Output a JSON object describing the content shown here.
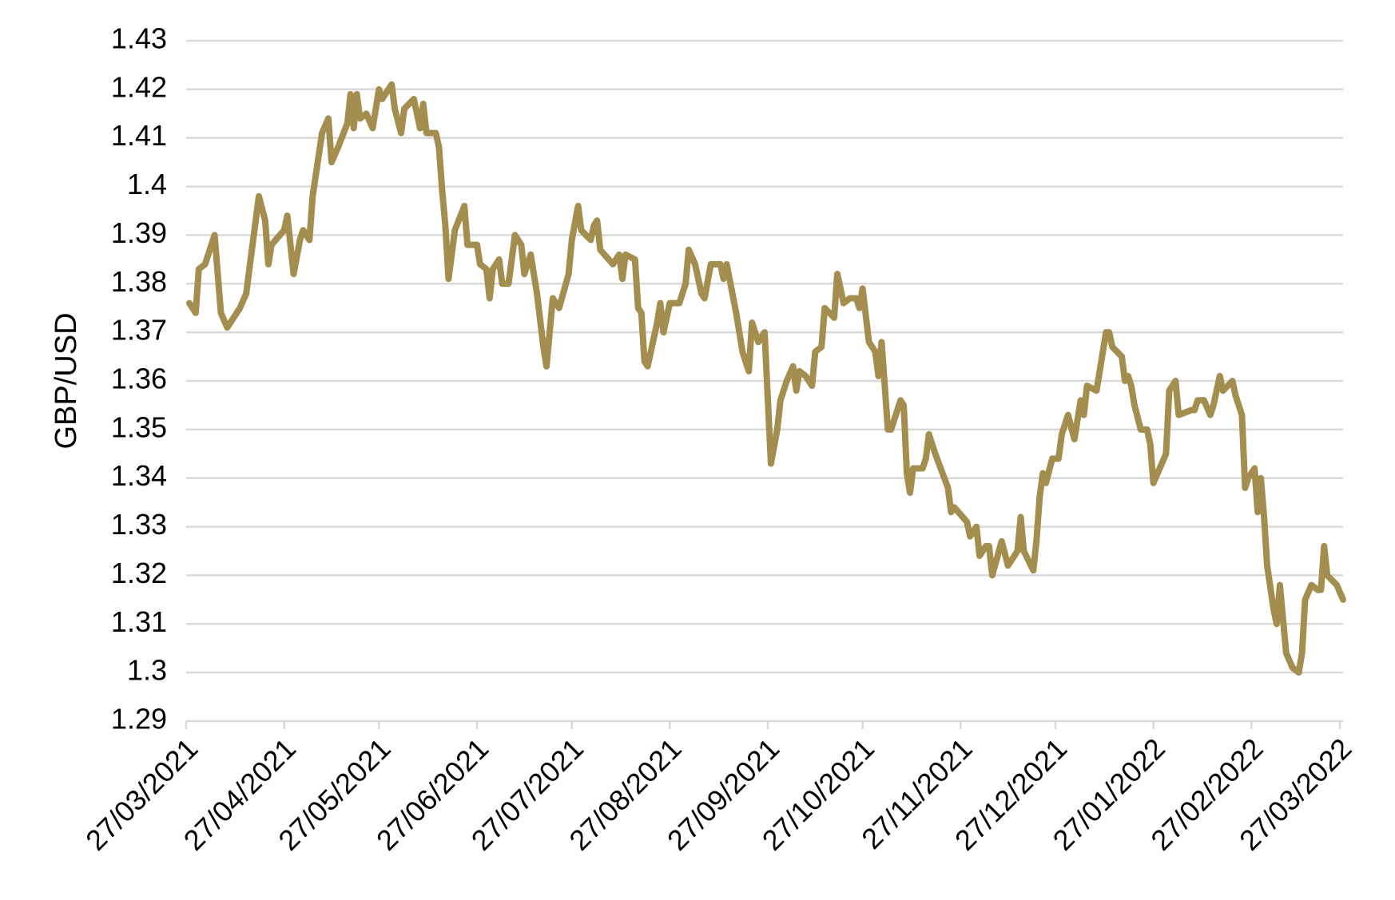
{
  "chart_data": {
    "type": "line",
    "ylabel": "GBP/USD",
    "color": "#a38e4f",
    "x": [
      "28/03/2021",
      "30/03/2021",
      "31/03/2021",
      "02/04/2021",
      "05/04/2021",
      "07/04/2021",
      "09/04/2021",
      "13/04/2021",
      "15/04/2021",
      "16/04/2021",
      "19/04/2021",
      "21/04/2021",
      "22/04/2021",
      "23/04/2021",
      "27/04/2021",
      "28/04/2021",
      "30/04/2021",
      "02/05/2021",
      "03/05/2021",
      "05/05/2021",
      "06/05/2021",
      "09/05/2021",
      "11/05/2021",
      "12/05/2021",
      "14/05/2021",
      "17/05/2021",
      "18/05/2021",
      "19/05/2021",
      "20/05/2021",
      "21/05/2021",
      "23/05/2021",
      "25/05/2021",
      "27/05/2021",
      "28/05/2021",
      "31/05/2021",
      "01/06/2021",
      "03/06/2021",
      "04/06/2021",
      "07/06/2021",
      "09/06/2021",
      "10/06/2021",
      "11/06/2021",
      "14/06/2021",
      "15/06/2021",
      "16/06/2021",
      "17/06/2021",
      "18/06/2021",
      "20/06/2021",
      "23/06/2021",
      "24/06/2021",
      "27/06/2021",
      "28/06/2021",
      "30/06/2021",
      "01/07/2021",
      "02/07/2021",
      "04/07/2021",
      "05/07/2021",
      "07/07/2021",
      "09/07/2021",
      "11/07/2021",
      "12/07/2021",
      "14/07/2021",
      "16/07/2021",
      "18/07/2021",
      "19/07/2021",
      "21/07/2021",
      "23/07/2021",
      "26/07/2021",
      "27/07/2021",
      "29/07/2021",
      "30/07/2021",
      "02/08/2021",
      "03/08/2021",
      "04/08/2021",
      "05/08/2021",
      "09/08/2021",
      "11/08/2021",
      "12/08/2021",
      "13/08/2021",
      "16/08/2021",
      "17/08/2021",
      "18/08/2021",
      "19/08/2021",
      "20/08/2021",
      "23/08/2021",
      "24/08/2021",
      "25/08/2021",
      "27/08/2021",
      "30/08/2021",
      "01/09/2021",
      "02/09/2021",
      "04/09/2021",
      "06/09/2021",
      "07/09/2021",
      "09/09/2021",
      "12/09/2021",
      "13/09/2021",
      "14/09/2021",
      "17/09/2021",
      "19/09/2021",
      "21/09/2021",
      "22/09/2021",
      "24/09/2021",
      "26/09/2021",
      "28/09/2021",
      "30/09/2021",
      "01/10/2021",
      "03/10/2021",
      "05/10/2021",
      "06/10/2021",
      "07/10/2021",
      "09/10/2021",
      "11/10/2021",
      "12/10/2021",
      "14/10/2021",
      "15/10/2021",
      "18/10/2021",
      "19/10/2021",
      "21/10/2021",
      "23/10/2021",
      "25/10/2021",
      "26/10/2021",
      "27/10/2021",
      "29/10/2021",
      "31/10/2021",
      "01/11/2021",
      "02/11/2021",
      "04/11/2021",
      "05/11/2021",
      "08/11/2021",
      "09/11/2021",
      "10/11/2021",
      "11/11/2021",
      "12/11/2021",
      "15/11/2021",
      "16/11/2021",
      "17/11/2021",
      "19/11/2021",
      "23/11/2021",
      "24/11/2021",
      "25/11/2021",
      "29/11/2021",
      "30/11/2021",
      "02/12/2021",
      "03/12/2021",
      "05/12/2021",
      "06/12/2021",
      "07/12/2021",
      "10/12/2021",
      "12/12/2021",
      "15/12/2021",
      "16/12/2021",
      "17/12/2021",
      "20/12/2021",
      "21/12/2021",
      "22/12/2021",
      "23/12/2021",
      "24/12/2021",
      "26/12/2021",
      "28/12/2021",
      "29/12/2021",
      "31/12/2021",
      "02/01/2022",
      "04/01/2022",
      "05/01/2022",
      "06/01/2022",
      "09/01/2022",
      "12/01/2022",
      "13/01/2022",
      "14/01/2022",
      "17/01/2022",
      "18/01/2022",
      "19/01/2022",
      "20/01/2022",
      "21/01/2022",
      "23/01/2022",
      "25/01/2022",
      "26/01/2022",
      "27/01/2022",
      "31/01/2022",
      "01/02/2022",
      "03/02/2022",
      "04/02/2022",
      "08/02/2022",
      "09/02/2022",
      "10/02/2022",
      "12/02/2022",
      "14/02/2022",
      "15/02/2022",
      "17/02/2022",
      "18/02/2022",
      "21/02/2022",
      "22/02/2022",
      "24/02/2022",
      "25/02/2022",
      "26/02/2022",
      "28/02/2022",
      "01/03/2022",
      "02/03/2022",
      "03/03/2022",
      "04/03/2022",
      "06/03/2022",
      "07/03/2022",
      "08/03/2022",
      "10/03/2022",
      "12/03/2022",
      "14/03/2022",
      "15/03/2022",
      "16/03/2022",
      "18/03/2022",
      "20/03/2022",
      "21/03/2022",
      "22/03/2022",
      "23/03/2022",
      "26/03/2022",
      "28/03/2022"
    ],
    "values": [
      1.376,
      1.374,
      1.383,
      1.384,
      1.39,
      1.374,
      1.371,
      1.375,
      1.378,
      1.383,
      1.398,
      1.393,
      1.384,
      1.388,
      1.391,
      1.394,
      1.382,
      1.389,
      1.391,
      1.389,
      1.398,
      1.411,
      1.414,
      1.405,
      1.408,
      1.413,
      1.419,
      1.412,
      1.419,
      1.414,
      1.415,
      1.412,
      1.42,
      1.418,
      1.421,
      1.416,
      1.411,
      1.416,
      1.418,
      1.412,
      1.417,
      1.411,
      1.411,
      1.408,
      1.399,
      1.392,
      1.381,
      1.391,
      1.396,
      1.388,
      1.388,
      1.384,
      1.383,
      1.377,
      1.383,
      1.385,
      1.38,
      1.38,
      1.39,
      1.388,
      1.382,
      1.386,
      1.378,
      1.367,
      1.363,
      1.377,
      1.375,
      1.382,
      1.389,
      1.396,
      1.391,
      1.389,
      1.392,
      1.393,
      1.387,
      1.384,
      1.386,
      1.381,
      1.386,
      1.385,
      1.375,
      1.374,
      1.364,
      1.363,
      1.372,
      1.376,
      1.37,
      1.376,
      1.376,
      1.38,
      1.387,
      1.384,
      1.378,
      1.377,
      1.384,
      1.384,
      1.381,
      1.384,
      1.374,
      1.366,
      1.362,
      1.372,
      1.368,
      1.37,
      1.343,
      1.35,
      1.356,
      1.36,
      1.363,
      1.358,
      1.362,
      1.361,
      1.359,
      1.366,
      1.367,
      1.375,
      1.373,
      1.382,
      1.376,
      1.377,
      1.377,
      1.375,
      1.379,
      1.368,
      1.366,
      1.361,
      1.368,
      1.35,
      1.35,
      1.356,
      1.355,
      1.341,
      1.337,
      1.342,
      1.342,
      1.344,
      1.349,
      1.345,
      1.338,
      1.333,
      1.334,
      1.331,
      1.328,
      1.33,
      1.324,
      1.326,
      1.326,
      1.32,
      1.327,
      1.322,
      1.325,
      1.332,
      1.325,
      1.321,
      1.327,
      1.336,
      1.341,
      1.339,
      1.344,
      1.344,
      1.349,
      1.353,
      1.348,
      1.356,
      1.353,
      1.359,
      1.358,
      1.37,
      1.37,
      1.367,
      1.365,
      1.36,
      1.361,
      1.359,
      1.355,
      1.35,
      1.35,
      1.347,
      1.339,
      1.345,
      1.358,
      1.36,
      1.353,
      1.354,
      1.354,
      1.356,
      1.356,
      1.353,
      1.355,
      1.361,
      1.358,
      1.36,
      1.357,
      1.353,
      1.338,
      1.34,
      1.342,
      1.333,
      1.34,
      1.332,
      1.322,
      1.313,
      1.31,
      1.318,
      1.304,
      1.301,
      1.3,
      1.304,
      1.315,
      1.318,
      1.317,
      1.317,
      1.326,
      1.32,
      1.318,
      1.315
    ],
    "xlim": [
      "27/03/2021",
      "28/03/2022"
    ],
    "xticks": [
      "27/03/2021",
      "27/04/2021",
      "27/05/2021",
      "27/06/2021",
      "27/07/2021",
      "27/08/2021",
      "27/09/2021",
      "27/10/2021",
      "27/11/2021",
      "27/12/2021",
      "27/01/2022",
      "27/02/2022",
      "27/03/2022"
    ],
    "ylim": [
      1.29,
      1.43
    ],
    "yticks": [
      1.29,
      1.3,
      1.31,
      1.32,
      1.33,
      1.34,
      1.35,
      1.36,
      1.37,
      1.38,
      1.39,
      1.4,
      1.41,
      1.42,
      1.43
    ],
    "grid": true
  }
}
